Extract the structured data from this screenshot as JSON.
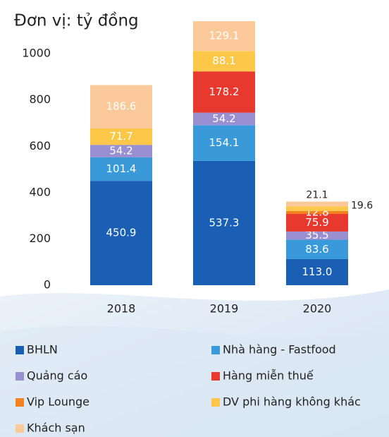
{
  "chart_data": {
    "type": "stacked_bar",
    "title": "Đơn vị: tỷ đồng",
    "categories": [
      "2018",
      "2019",
      "2020"
    ],
    "series": [
      {
        "name": "BHLN",
        "color": "#1a5fb4",
        "values": [
          450.9,
          537.3,
          113.0
        ],
        "value_labels": [
          "450.9",
          "537.3",
          "113.0"
        ]
      },
      {
        "name": "Nhà hàng - Fastfood",
        "color": "#3a9ad9",
        "values": [
          101.4,
          154.1,
          83.6
        ],
        "value_labels": [
          "101.4",
          "154.1",
          "83.6"
        ]
      },
      {
        "name": "Quảng cáo",
        "color": "#9a8fd0",
        "values": [
          54.2,
          54.2,
          35.5
        ],
        "value_labels": [
          "54.2",
          "54.2",
          "35.5"
        ]
      },
      {
        "name": "Hàng miễn thuế",
        "color": "#e8392e",
        "values": [
          null,
          178.2,
          75.9
        ],
        "value_labels": [
          null,
          "178.2",
          "75.9"
        ]
      },
      {
        "name": "Vip Lounge",
        "color": "#f58220",
        "values": [
          null,
          null,
          12.8
        ],
        "value_labels": [
          null,
          null,
          "12.8"
        ]
      },
      {
        "name": "DV phi hàng không khác",
        "color": "#fdc84a",
        "values": [
          71.7,
          88.1,
          19.6
        ],
        "value_labels": [
          "71.7",
          "88.1",
          "19.6"
        ]
      },
      {
        "name": "Khách sạn",
        "color": "#fbc99a",
        "values": [
          186.6,
          129.1,
          21.1
        ],
        "value_labels": [
          "186.6",
          "129.1",
          "21.1"
        ]
      }
    ],
    "ylim": [
      0,
      1150
    ],
    "yticks": [
      0,
      200,
      400,
      600,
      800,
      1000
    ],
    "grid": false
  }
}
